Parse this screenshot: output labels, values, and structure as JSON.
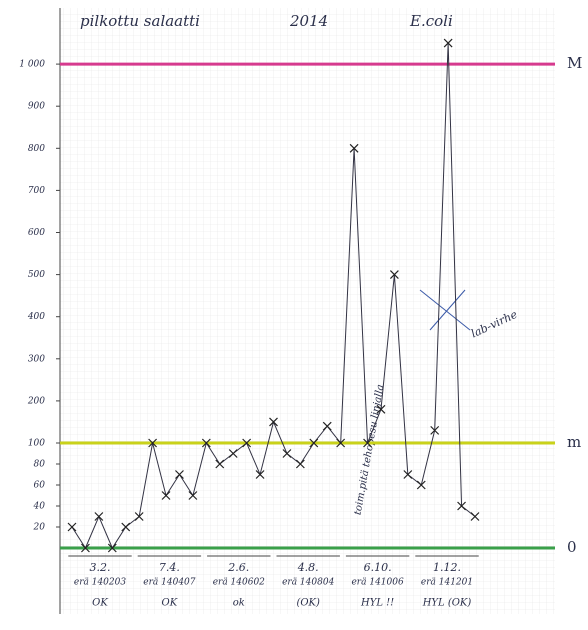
{
  "chart_data": {
    "type": "line",
    "title": "pilkottu salaatti",
    "year": "2014",
    "subject": "E.coli",
    "categories": [
      null,
      null,
      null,
      null,
      null,
      null,
      null,
      null,
      null,
      null,
      null,
      null,
      null,
      null,
      null,
      null,
      null,
      null,
      null,
      null,
      null,
      null,
      null,
      null,
      null,
      null,
      null,
      null,
      null,
      null,
      null
    ],
    "series": [
      {
        "name": "E.coli",
        "color": "#333344",
        "values": [
          20,
          0,
          30,
          0,
          20,
          30,
          100,
          50,
          70,
          50,
          100,
          80,
          90,
          100,
          70,
          150,
          90,
          80,
          100,
          140,
          100,
          800,
          100,
          180,
          500,
          70,
          60,
          130,
          1050,
          40,
          30
        ]
      }
    ],
    "ylim": [
      0,
      1100
    ],
    "yticks": [
      20,
      40,
      60,
      80,
      100,
      200,
      300,
      400,
      500,
      600,
      700,
      800,
      900,
      {
        "value": 1000,
        "label": "1 000"
      }
    ],
    "grid": true,
    "reference_lines": [
      {
        "value": 1000,
        "label": "M",
        "color": "#d63a8e"
      },
      {
        "value": 100,
        "label": "m",
        "color": "#c9d21a"
      },
      {
        "value": 0,
        "label": "0",
        "color": "#3aa04a"
      }
    ],
    "groups": [
      {
        "date": "3.2.",
        "batch": "erä 140203",
        "status": "OK"
      },
      {
        "date": "7.4.",
        "batch": "erä 140407",
        "status": "OK"
      },
      {
        "date": "2.6.",
        "batch": "erä 140602",
        "status": "ok"
      },
      {
        "date": "4.8.",
        "batch": "erä 140804",
        "status": "(OK)"
      },
      {
        "date": "6.10.",
        "batch": "erä 141006",
        "status": "HYL !!"
      },
      {
        "date": "1.12.",
        "batch": "erä 141201",
        "status": "HYL (OK)"
      }
    ],
    "annotations": [
      "toim.pitä tehopesu linjalla",
      "lab-virhe"
    ]
  }
}
